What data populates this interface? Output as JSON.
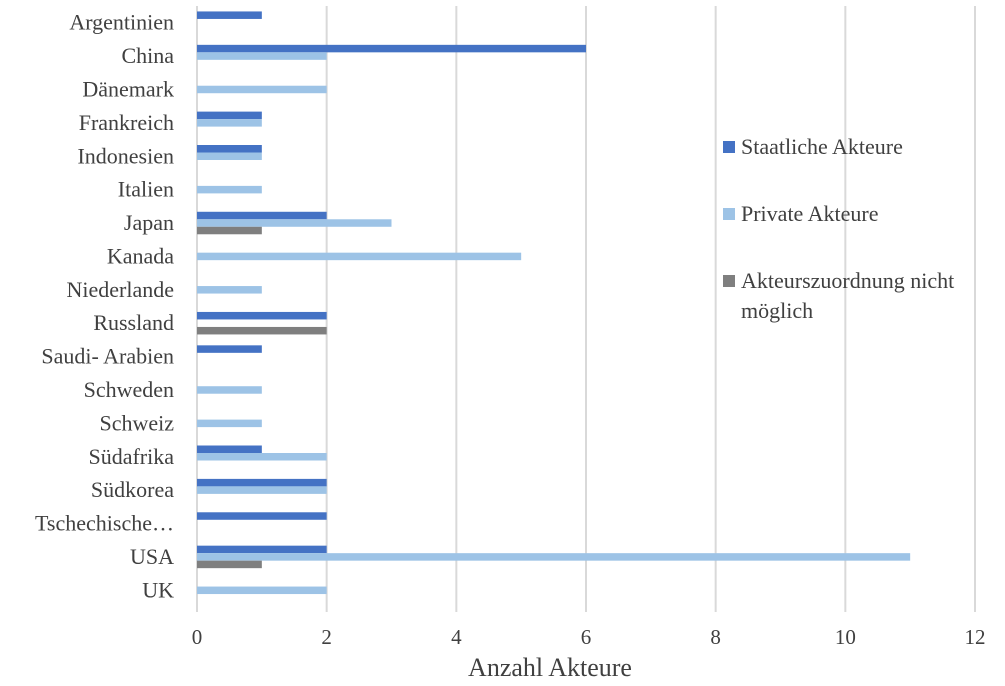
{
  "chart_data": {
    "type": "bar",
    "orientation": "horizontal",
    "title": "",
    "xlabel": "Anzahl Akteure",
    "ylabel": "",
    "xlim": [
      0,
      12
    ],
    "xticks": [
      0,
      2,
      4,
      6,
      8,
      10,
      12
    ],
    "grid": true,
    "legend": "right",
    "categories": [
      "Argentinien",
      "China",
      "Dänemark",
      "Frankreich",
      "Indonesien",
      "Italien",
      "Japan",
      "Kanada",
      "Niederlande",
      "Russland",
      "Saudi- Arabien",
      "Schweden",
      "Schweiz",
      "Südafrika",
      "Südkorea",
      "Tschechische…",
      "USA",
      "UK"
    ],
    "series": [
      {
        "name": "Staatliche Akteure",
        "color": "#4472C4",
        "values": [
          1,
          6,
          0,
          1,
          1,
          0,
          2,
          0,
          0,
          2,
          1,
          0,
          0,
          1,
          2,
          2,
          2,
          0
        ]
      },
      {
        "name": "Private Akteure",
        "color": "#9DC3E6",
        "values": [
          0,
          2,
          2,
          1,
          1,
          1,
          3,
          5,
          1,
          0,
          0,
          1,
          1,
          2,
          2,
          0,
          11,
          2
        ]
      },
      {
        "name": "Akteurszuordnung nicht möglich",
        "legend_lines": [
          "Akteurszuordnung nicht",
          "möglich"
        ],
        "color": "#7F7F7F",
        "values": [
          0,
          0,
          0,
          0,
          0,
          0,
          1,
          0,
          0,
          2,
          0,
          0,
          0,
          0,
          0,
          0,
          1,
          0
        ]
      }
    ]
  }
}
